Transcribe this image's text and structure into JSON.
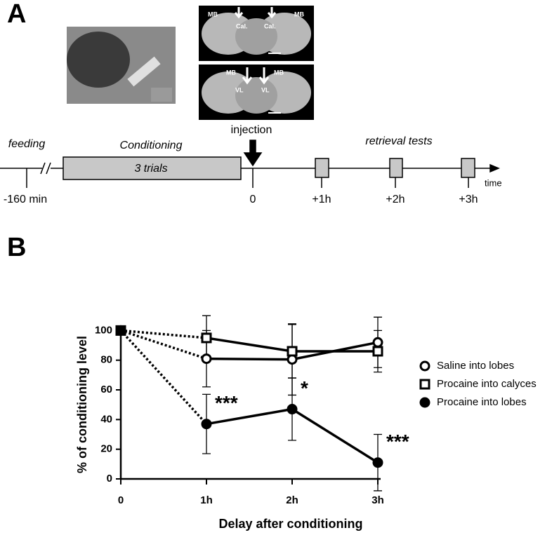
{
  "panel_a": {
    "label": "A",
    "brain_labels": {
      "top": [
        "MB",
        "Cal.",
        "Cal.",
        "MB"
      ],
      "bottom": [
        "MB",
        "VL",
        "VL",
        "MB"
      ]
    },
    "injection": "injection",
    "timeline": {
      "feeding": "feeding",
      "conditioning": "Conditioning",
      "trials": "3 trials",
      "retrieval": "retrieval tests",
      "time": "time",
      "ticks": [
        "-160 min",
        "0",
        "+1h",
        "+2h",
        "+3h"
      ]
    }
  },
  "chart_data": {
    "type": "line",
    "panel_label": "B",
    "x_label": "Delay after conditioning",
    "y_label": "% of conditioning level",
    "categories": [
      "0",
      "1h",
      "2h",
      "3h"
    ],
    "ylim": [
      0,
      103
    ],
    "yticks": [
      0,
      20,
      40,
      60,
      80,
      100
    ],
    "first_segment_style": "dotted",
    "series": [
      {
        "name": "Saline into lobes",
        "color": "#000000",
        "marker": "circle-open",
        "values": [
          100,
          81,
          80.5,
          92
        ],
        "errors": [
          null,
          19,
          24,
          17
        ]
      },
      {
        "name": "Procaine into calyces",
        "color": "#000000",
        "marker": "square-open",
        "values": [
          100,
          95,
          86,
          86
        ],
        "errors": [
          null,
          15,
          18,
          14
        ]
      },
      {
        "name": "Procaine into lobes",
        "color": "#000000",
        "marker": "circle-filled",
        "values": [
          100,
          37,
          47,
          11
        ],
        "errors": [
          null,
          20,
          21,
          19
        ]
      }
    ],
    "annotations": [
      {
        "text": "***",
        "series": 2,
        "category": 1
      },
      {
        "text": "*",
        "series": 2,
        "category": 2
      },
      {
        "text": "***",
        "series": 2,
        "category": 3
      }
    ]
  }
}
